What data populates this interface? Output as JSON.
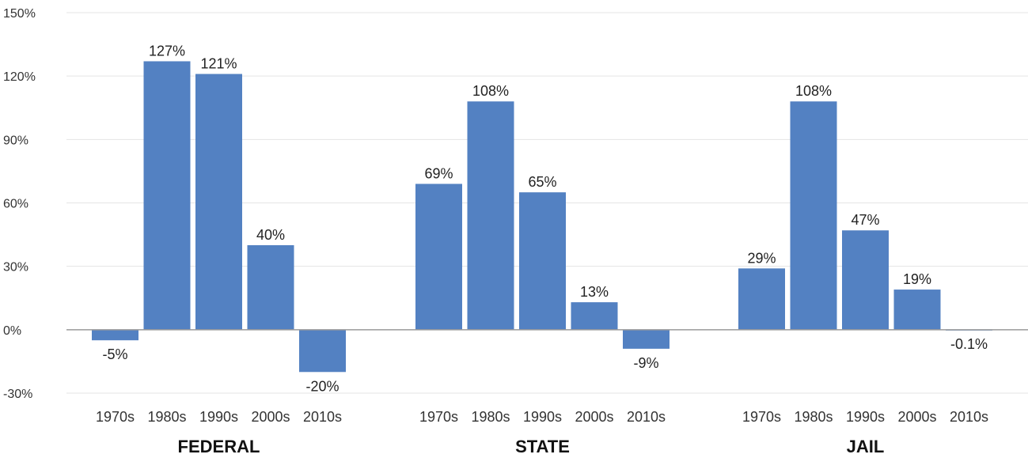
{
  "chart_data": {
    "type": "bar",
    "ylim": [
      -30,
      150
    ],
    "yticks": [
      -30,
      0,
      30,
      60,
      90,
      120,
      150
    ],
    "ytick_labels": [
      "-30%",
      "0%",
      "30%",
      "60%",
      "90%",
      "120%",
      "150%"
    ],
    "grid": true,
    "bar_color": "#5381c2",
    "categories": [
      "1970s",
      "1980s",
      "1990s",
      "2000s",
      "2010s"
    ],
    "groups": [
      {
        "name": "FEDERAL",
        "values": [
          -5,
          127,
          121,
          40,
          -20
        ],
        "labels": [
          "-5%",
          "127%",
          "121%",
          "40%",
          "-20%"
        ]
      },
      {
        "name": "STATE",
        "values": [
          69,
          108,
          65,
          13,
          -9
        ],
        "labels": [
          "69%",
          "108%",
          "65%",
          "13%",
          "-9%"
        ]
      },
      {
        "name": "JAIL",
        "values": [
          29,
          108,
          47,
          19,
          -0.1
        ],
        "labels": [
          "29%",
          "108%",
          "47%",
          "19%",
          "-0.1%"
        ]
      }
    ]
  }
}
